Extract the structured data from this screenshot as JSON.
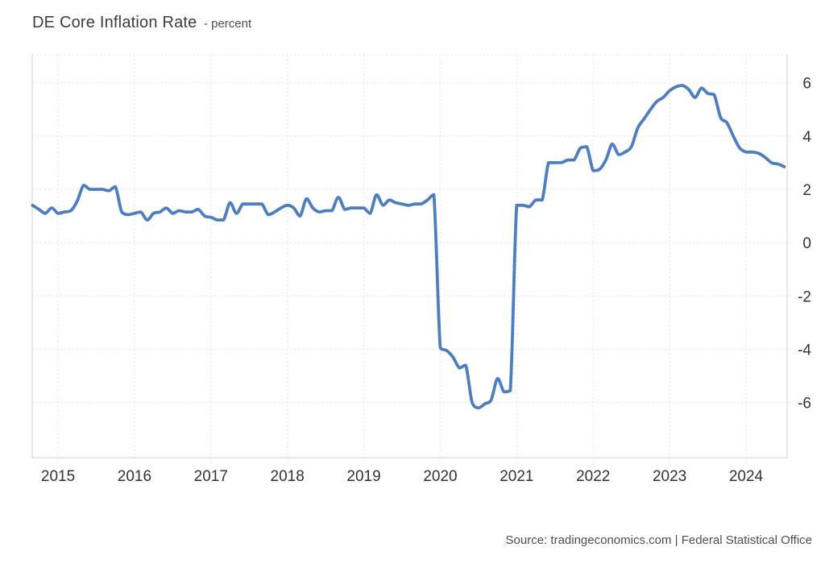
{
  "header": {
    "title": "DE Core Inflation Rate",
    "subtitle": "- percent"
  },
  "footer": {
    "source": "Source: tradingeconomics.com | Federal Statistical Office"
  },
  "chart_data": {
    "type": "line",
    "title": "DE Core Inflation Rate",
    "subtitle": "percent",
    "xlabel": "",
    "ylabel": "",
    "legend": "none",
    "grid": "dotted",
    "line_color": "#4d7ebf",
    "grid_color": "#e4e4e4",
    "border_color": "#dfdfdf",
    "tick_label_color": "#333333",
    "x_tick_labels": [
      "2015",
      "2016",
      "2017",
      "2018",
      "2019",
      "2020",
      "2021",
      "2022",
      "2023",
      "2024"
    ],
    "x_tick_months": [
      0,
      12,
      24,
      36,
      48,
      60,
      72,
      84,
      96,
      108
    ],
    "xlim_months": [
      -4.05,
      114.45
    ],
    "y_ticks": [
      6,
      4,
      2,
      0,
      -2,
      -4,
      -6
    ],
    "ylim": [
      -8.07,
      7.05
    ],
    "series": [
      {
        "name": "DE Core Inflation Rate (percent)",
        "frequency": "monthly",
        "start": "2014-09",
        "start_offset_months": -4,
        "values": [
          1.4,
          1.25,
          1.1,
          1.3,
          1.1,
          1.15,
          1.2,
          1.55,
          2.15,
          2.0,
          2.0,
          2.0,
          1.95,
          2.1,
          1.15,
          1.05,
          1.1,
          1.15,
          0.85,
          1.1,
          1.15,
          1.3,
          1.1,
          1.2,
          1.15,
          1.15,
          1.25,
          1.0,
          0.95,
          0.85,
          0.85,
          1.5,
          1.1,
          1.45,
          1.45,
          1.45,
          1.45,
          1.05,
          1.15,
          1.3,
          1.4,
          1.3,
          1.0,
          1.65,
          1.3,
          1.15,
          1.2,
          1.2,
          1.7,
          1.25,
          1.3,
          1.3,
          1.3,
          1.1,
          1.8,
          1.4,
          1.6,
          1.5,
          1.45,
          1.4,
          1.45,
          1.45,
          1.6,
          1.8,
          -3.95,
          -4.05,
          -4.3,
          -4.7,
          -4.6,
          -6.0,
          -6.2,
          -6.05,
          -5.9,
          -5.1,
          -5.6,
          -5.55,
          1.4,
          1.4,
          1.35,
          1.6,
          1.6,
          3.0,
          3.0,
          3.0,
          3.1,
          3.1,
          3.55,
          3.6,
          2.7,
          2.75,
          3.1,
          3.7,
          3.3,
          3.4,
          3.6,
          4.3,
          4.65,
          5.0,
          5.3,
          5.45,
          5.7,
          5.85,
          5.9,
          5.75,
          5.45,
          5.8,
          5.6,
          5.55,
          4.7,
          4.5,
          4.0,
          3.55,
          3.4,
          3.4,
          3.35,
          3.2,
          3.0,
          2.95,
          2.85
        ]
      }
    ]
  }
}
